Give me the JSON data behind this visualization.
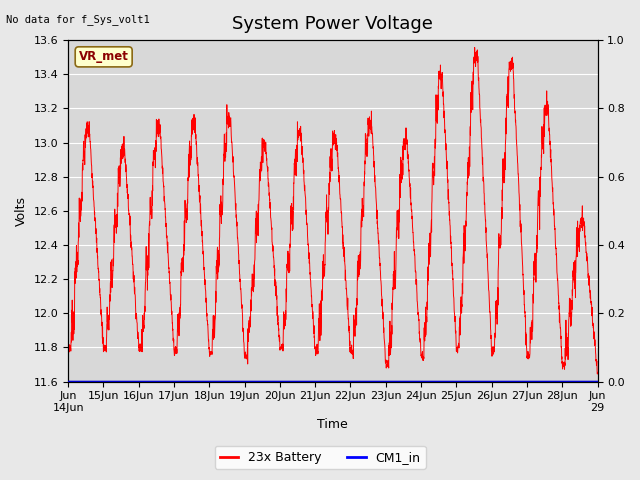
{
  "title": "System Power Voltage",
  "ylabel_left": "Volts",
  "xlabel": "Time",
  "no_data_text": "No data for f_Sys_volt1",
  "vr_met_label": "VR_met",
  "ylim_left": [
    11.6,
    13.6
  ],
  "ylim_right": [
    0.0,
    1.0
  ],
  "yticks_left": [
    11.6,
    11.8,
    12.0,
    12.2,
    12.4,
    12.6,
    12.8,
    13.0,
    13.2,
    13.4,
    13.6
  ],
  "yticks_right": [
    0.0,
    0.2,
    0.4,
    0.6,
    0.8,
    1.0
  ],
  "background_color": "#e8e8e8",
  "plot_bg_upper": "#e0e0e0",
  "plot_bg_lower": "#d0d0d0",
  "line_color": "#ff0000",
  "cm1_color": "#0000cc",
  "title_fontsize": 13,
  "axis_label_fontsize": 9,
  "tick_fontsize": 8,
  "xtick_labels": [
    "Jun\n14Jun",
    "15Jun",
    "16Jun",
    "17Jun",
    "18Jun",
    "19Jun",
    "20Jun",
    "21Jun",
    "22Jun",
    "23Jun",
    "24Jun",
    "25Jun",
    "26Jun",
    "27Jun",
    "28Jun",
    "Jun\n29"
  ],
  "figsize": [
    6.4,
    4.8
  ],
  "dpi": 100
}
